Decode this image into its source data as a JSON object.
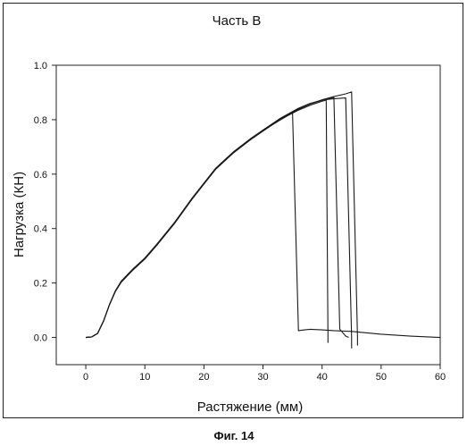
{
  "chart_data": {
    "type": "line",
    "title": "Часть В",
    "xlabel": "Растяжение (мм)",
    "ylabel": "Нагрузка (КН)",
    "caption": "Фиг. 14",
    "xlim": [
      -5,
      60
    ],
    "ylim": [
      -0.1,
      1.0
    ],
    "xticks": [
      0,
      10,
      20,
      30,
      40,
      50,
      60
    ],
    "yticks": [
      0.0,
      0.2,
      0.4,
      0.6,
      0.8,
      1.0
    ],
    "xtick_labels": [
      "0",
      "10",
      "20",
      "30",
      "40",
      "50",
      "60"
    ],
    "ytick_labels": [
      "0.0",
      "0.2",
      "0.4",
      "0.6",
      "0.8",
      "1.0"
    ],
    "grid": false,
    "series": [
      {
        "values": [
          [
            0,
            0
          ],
          [
            1,
            0.002
          ],
          [
            2,
            0.015
          ],
          [
            3,
            0.06
          ],
          [
            4,
            0.12
          ],
          [
            5,
            0.17
          ],
          [
            6,
            0.205
          ],
          [
            8,
            0.25
          ],
          [
            10,
            0.29
          ],
          [
            12,
            0.34
          ],
          [
            15,
            0.42
          ],
          [
            18,
            0.51
          ],
          [
            20,
            0.565
          ],
          [
            22,
            0.62
          ],
          [
            25,
            0.68
          ],
          [
            28,
            0.73
          ],
          [
            30,
            0.76
          ],
          [
            33,
            0.8
          ],
          [
            35,
            0.825
          ],
          [
            36,
            0.025
          ],
          [
            37,
            0.028
          ],
          [
            38,
            0.03
          ],
          [
            40,
            0.028
          ],
          [
            42,
            0.025
          ],
          [
            45,
            0.022
          ],
          [
            50,
            0.012
          ],
          [
            55,
            0.005
          ],
          [
            60,
            0.0
          ]
        ]
      },
      {
        "values": [
          [
            0,
            0
          ],
          [
            1,
            0.002
          ],
          [
            2,
            0.015
          ],
          [
            3,
            0.06
          ],
          [
            4,
            0.12
          ],
          [
            5,
            0.168
          ],
          [
            6,
            0.203
          ],
          [
            8,
            0.248
          ],
          [
            10,
            0.288
          ],
          [
            12,
            0.338
          ],
          [
            15,
            0.418
          ],
          [
            18,
            0.508
          ],
          [
            20,
            0.563
          ],
          [
            22,
            0.618
          ],
          [
            25,
            0.678
          ],
          [
            28,
            0.728
          ],
          [
            30,
            0.758
          ],
          [
            33,
            0.802
          ],
          [
            36,
            0.835
          ],
          [
            38,
            0.853
          ],
          [
            40,
            0.868
          ],
          [
            40.7,
            0.872
          ],
          [
            41,
            0.0
          ],
          [
            41,
            -0.02
          ]
        ]
      },
      {
        "values": [
          [
            0,
            0
          ],
          [
            1,
            0.002
          ],
          [
            2,
            0.015
          ],
          [
            3,
            0.06
          ],
          [
            4,
            0.12
          ],
          [
            5,
            0.17
          ],
          [
            6,
            0.206
          ],
          [
            8,
            0.251
          ],
          [
            10,
            0.291
          ],
          [
            12,
            0.341
          ],
          [
            15,
            0.421
          ],
          [
            18,
            0.511
          ],
          [
            20,
            0.566
          ],
          [
            22,
            0.621
          ],
          [
            25,
            0.681
          ],
          [
            28,
            0.731
          ],
          [
            30,
            0.761
          ],
          [
            33,
            0.805
          ],
          [
            36,
            0.84
          ],
          [
            38,
            0.858
          ],
          [
            40,
            0.872
          ],
          [
            42,
            0.882
          ],
          [
            43,
            0.03
          ],
          [
            44,
            0.005
          ],
          [
            44.5,
            0.0
          ]
        ]
      },
      {
        "values": [
          [
            0,
            0
          ],
          [
            1,
            0.002
          ],
          [
            2,
            0.015
          ],
          [
            3,
            0.06
          ],
          [
            4,
            0.12
          ],
          [
            5,
            0.171
          ],
          [
            6,
            0.207
          ],
          [
            8,
            0.252
          ],
          [
            10,
            0.292
          ],
          [
            12,
            0.342
          ],
          [
            15,
            0.422
          ],
          [
            18,
            0.512
          ],
          [
            20,
            0.567
          ],
          [
            22,
            0.622
          ],
          [
            25,
            0.682
          ],
          [
            28,
            0.732
          ],
          [
            30,
            0.762
          ],
          [
            33,
            0.806
          ],
          [
            36,
            0.842
          ],
          [
            38,
            0.86
          ],
          [
            40,
            0.872
          ],
          [
            42,
            0.877
          ],
          [
            44,
            0.88
          ],
          [
            45,
            0.0
          ],
          [
            45,
            -0.04
          ]
        ]
      },
      {
        "values": [
          [
            0,
            0
          ],
          [
            1,
            0.002
          ],
          [
            2,
            0.015
          ],
          [
            3,
            0.06
          ],
          [
            4,
            0.12
          ],
          [
            5,
            0.169
          ],
          [
            6,
            0.204
          ],
          [
            8,
            0.249
          ],
          [
            10,
            0.289
          ],
          [
            12,
            0.339
          ],
          [
            15,
            0.419
          ],
          [
            18,
            0.509
          ],
          [
            20,
            0.564
          ],
          [
            22,
            0.619
          ],
          [
            25,
            0.679
          ],
          [
            28,
            0.729
          ],
          [
            30,
            0.759
          ],
          [
            33,
            0.803
          ],
          [
            36,
            0.838
          ],
          [
            38,
            0.858
          ],
          [
            40,
            0.873
          ],
          [
            42,
            0.885
          ],
          [
            44,
            0.895
          ],
          [
            45,
            0.902
          ],
          [
            46,
            0.0
          ],
          [
            46,
            -0.03
          ]
        ]
      }
    ]
  }
}
